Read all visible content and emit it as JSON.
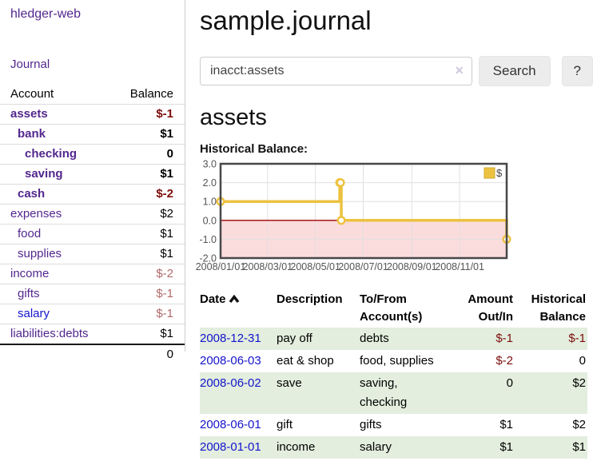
{
  "app": {
    "brand": "hledger-web",
    "nav_journal": "Journal"
  },
  "theme": {
    "link-purple": "#53278e",
    "link-blue": "#1414cc",
    "negative-strong": "#7d0d0d",
    "negative-dim": "#b26a6a",
    "row-green": "#e3eede",
    "button-bg": "#ececec",
    "border-gray": "#cccccc"
  },
  "sidebar": {
    "accounts_header": {
      "account": "Account",
      "balance": "Balance"
    },
    "accounts": [
      {
        "name": "assets",
        "depth": 1,
        "bold": true,
        "blue": false,
        "balance": "$-1",
        "balance_class": "neg-strong"
      },
      {
        "name": "bank",
        "depth": 2,
        "bold": true,
        "blue": false,
        "balance": "$1",
        "balance_class": ""
      },
      {
        "name": "checking",
        "depth": 3,
        "bold": true,
        "blue": false,
        "balance": "0",
        "balance_class": ""
      },
      {
        "name": "saving",
        "depth": 3,
        "bold": true,
        "blue": false,
        "balance": "$1",
        "balance_class": ""
      },
      {
        "name": "cash",
        "depth": 2,
        "bold": true,
        "blue": false,
        "balance": "$-2",
        "balance_class": "neg-strong"
      },
      {
        "name": "expenses",
        "depth": 1,
        "bold": false,
        "blue": false,
        "balance": "$2",
        "balance_class": ""
      },
      {
        "name": "food",
        "depth": 2,
        "bold": false,
        "blue": false,
        "balance": "$1",
        "balance_class": ""
      },
      {
        "name": "supplies",
        "depth": 2,
        "bold": false,
        "blue": false,
        "balance": "$1",
        "balance_class": ""
      },
      {
        "name": "income",
        "depth": 1,
        "bold": false,
        "blue": false,
        "balance": "$-2",
        "balance_class": "neg-dim"
      },
      {
        "name": "gifts",
        "depth": 2,
        "bold": false,
        "blue": false,
        "balance": "$-1",
        "balance_class": "neg-dim"
      },
      {
        "name": "salary",
        "depth": 2,
        "bold": false,
        "blue": true,
        "balance": "$-1",
        "balance_class": "neg-dim"
      },
      {
        "name": "liabilities:debts",
        "depth": 1,
        "bold": false,
        "blue": false,
        "balance": "$1",
        "balance_class": ""
      }
    ],
    "total": "0"
  },
  "header": {
    "title": "sample.journal"
  },
  "search": {
    "value": "inacct:assets",
    "clear_icon": "✕",
    "button": "Search",
    "help_button": "?"
  },
  "account_page": {
    "heading": "assets",
    "chart_title": "Historical Balance:"
  },
  "chart_data": {
    "type": "line",
    "step": true,
    "title": "Historical Balance:",
    "x_start": "2008-01-01",
    "x_end": "2008-12-31",
    "ylim": [
      -2,
      3
    ],
    "y_ticks": [
      3,
      2,
      1,
      0,
      -1,
      -2
    ],
    "x_ticks": [
      {
        "date": "2008-01-01",
        "label": "2008/01/01"
      },
      {
        "date": "2008-03-01",
        "label": "2008/03/01"
      },
      {
        "date": "2008-05-01",
        "label": "2008/05/01"
      },
      {
        "date": "2008-07-01",
        "label": "2008/07/01"
      },
      {
        "date": "2008-09-01",
        "label": "2008/09/01"
      },
      {
        "date": "2008-11-01",
        "label": "2008/11/01"
      }
    ],
    "series": [
      {
        "name": "$",
        "color": "#edc240",
        "points": [
          {
            "date": "2008-01-01",
            "value": 1
          },
          {
            "date": "2008-06-01",
            "value": 2
          },
          {
            "date": "2008-06-02",
            "value": 2
          },
          {
            "date": "2008-06-03",
            "value": 0
          },
          {
            "date": "2008-12-31",
            "value": -1
          }
        ]
      }
    ],
    "legend": {
      "label": "$",
      "position": "top-right"
    },
    "grid": {
      "on": true,
      "color": "#e0e0e0",
      "border_color": "#47474a",
      "zero_line_color": "#a00000",
      "negative_fill": "#fbdcdc",
      "label_color": "#545454"
    }
  },
  "register_table": {
    "columns": [
      "Date",
      "Description",
      "To/From Account(s)",
      "Amount Out/In",
      "Historical Balance"
    ],
    "sort": {
      "column": "Date",
      "direction": "ascending"
    },
    "rows": [
      {
        "date": "2008-12-31",
        "description": "pay off",
        "accounts": [
          "debts"
        ],
        "amount": "$-1",
        "amount_negative": true,
        "balance": "$-1",
        "balance_negative": true,
        "shaded": true
      },
      {
        "date": "2008-06-03",
        "description": "eat & shop",
        "accounts": [
          "food, supplies"
        ],
        "amount": "$-2",
        "amount_negative": true,
        "balance": "0",
        "balance_negative": false,
        "shaded": false
      },
      {
        "date": "2008-06-02",
        "description": "save",
        "accounts": [
          "saving,",
          "checking"
        ],
        "amount": "0",
        "amount_negative": false,
        "balance": "$2",
        "balance_negative": false,
        "shaded": true
      },
      {
        "date": "2008-06-01",
        "description": "gift",
        "accounts": [
          "gifts"
        ],
        "amount": "$1",
        "amount_negative": false,
        "balance": "$2",
        "balance_negative": false,
        "shaded": false
      },
      {
        "date": "2008-01-01",
        "description": "income",
        "accounts": [
          "salary"
        ],
        "amount": "$1",
        "amount_negative": false,
        "balance": "$1",
        "balance_negative": false,
        "shaded": true
      }
    ]
  }
}
